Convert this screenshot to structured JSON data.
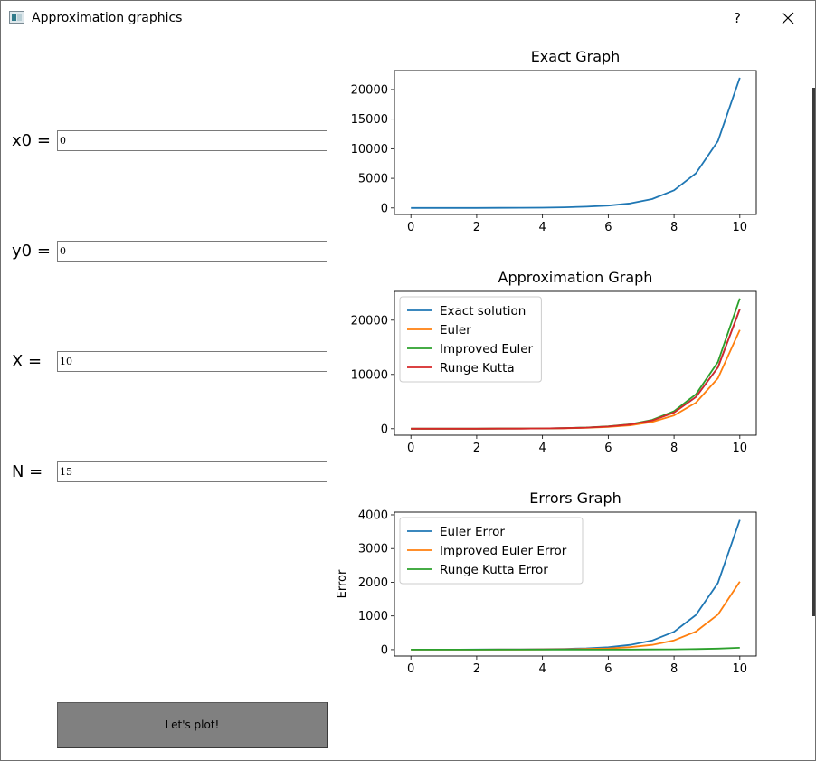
{
  "window": {
    "title": "Approximation graphics",
    "help_label": "?",
    "icon": "app-window-icon",
    "close_icon": "close-icon"
  },
  "form": {
    "fields": [
      {
        "label": "x0 =",
        "value": "0"
      },
      {
        "label": "y0 =",
        "value": "0"
      },
      {
        "label": "X =",
        "value": "10"
      },
      {
        "label": "N =",
        "value": "15"
      }
    ],
    "plot_button": "Let's plot!"
  },
  "colors": {
    "blue": "#1f77b4",
    "orange": "#ff7f0e",
    "green": "#2ca02c",
    "red": "#d62728",
    "button": "#808080"
  },
  "chart_data": [
    {
      "type": "line",
      "title": "Exact Graph",
      "xlabel": "",
      "ylabel": "",
      "xlim": [
        -0.5,
        10.5
      ],
      "ylim": [
        -1100,
        23200
      ],
      "xticks": [
        0,
        2,
        4,
        6,
        8,
        10
      ],
      "yticks": [
        0,
        5000,
        10000,
        15000,
        20000
      ],
      "legend": false,
      "x": [
        0,
        0.667,
        1.333,
        2,
        2.667,
        3.333,
        4,
        4.667,
        5.333,
        6,
        6.667,
        7.333,
        8,
        8.667,
        9.333,
        10
      ],
      "series": [
        {
          "color": "#1f77b4",
          "values": [
            0,
            1,
            3,
            6,
            12,
            25,
            52,
            104,
            207,
            400,
            760,
            1500,
            2980,
            5850,
            11300,
            22000
          ]
        }
      ]
    },
    {
      "type": "line",
      "title": "Approximation Graph",
      "xlabel": "",
      "ylabel": "",
      "xlim": [
        -0.5,
        10.5
      ],
      "ylim": [
        -1200,
        25300
      ],
      "xticks": [
        0,
        2,
        4,
        6,
        8,
        10
      ],
      "yticks": [
        0,
        10000,
        20000
      ],
      "legend": true,
      "legend_position": "upper-left",
      "x": [
        0,
        0.667,
        1.333,
        2,
        2.667,
        3.333,
        4,
        4.667,
        5.333,
        6,
        6.667,
        7.333,
        8,
        8.667,
        9.333,
        10
      ],
      "series": [
        {
          "name": "Exact solution",
          "color": "#1f77b4",
          "values": [
            0,
            1,
            3,
            6,
            12,
            25,
            52,
            104,
            207,
            400,
            760,
            1500,
            2980,
            5850,
            11300,
            22000
          ]
        },
        {
          "name": "Euler",
          "color": "#ff7f0e",
          "values": [
            0,
            1,
            3,
            5,
            10,
            20,
            42,
            85,
            168,
            330,
            620,
            1230,
            2450,
            4800,
            9300,
            18200
          ]
        },
        {
          "name": "Improved Euler",
          "color": "#2ca02c",
          "values": [
            0,
            1,
            3,
            7,
            13,
            27,
            56,
            112,
            222,
            430,
            820,
            1620,
            3230,
            6350,
            12300,
            24000
          ]
        },
        {
          "name": "Runge Kutta",
          "color": "#d62728",
          "values": [
            0,
            1,
            3,
            6,
            12,
            25,
            52,
            104,
            207,
            400,
            760,
            1500,
            2980,
            5850,
            11300,
            22050
          ]
        }
      ]
    },
    {
      "type": "line",
      "title": "Errors Graph",
      "xlabel": "",
      "ylabel": "Error",
      "xlim": [
        -0.5,
        10.5
      ],
      "ylim": [
        -190,
        4080
      ],
      "xticks": [
        0,
        2,
        4,
        6,
        8,
        10
      ],
      "yticks": [
        0,
        1000,
        2000,
        3000,
        4000
      ],
      "legend": true,
      "legend_position": "upper-left",
      "x": [
        0,
        0.667,
        1.333,
        2,
        2.667,
        3.333,
        4,
        4.667,
        5.333,
        6,
        6.667,
        7.333,
        8,
        8.667,
        9.333,
        10
      ],
      "series": [
        {
          "name": "Euler Error",
          "color": "#1f77b4",
          "values": [
            0,
            1,
            2,
            3,
            5,
            8,
            13,
            22,
            38,
            70,
            140,
            270,
            530,
            1030,
            1980,
            3850
          ]
        },
        {
          "name": "Improved Euler Error",
          "color": "#ff7f0e",
          "values": [
            0,
            0,
            1,
            2,
            3,
            4,
            7,
            11,
            20,
            36,
            72,
            140,
            275,
            535,
            1040,
            2020
          ]
        },
        {
          "name": "Runge Kutta Error",
          "color": "#2ca02c",
          "values": [
            0,
            0,
            0,
            0,
            0,
            0,
            0,
            1,
            1,
            2,
            3,
            6,
            10,
            17,
            30,
            55
          ]
        }
      ]
    }
  ]
}
